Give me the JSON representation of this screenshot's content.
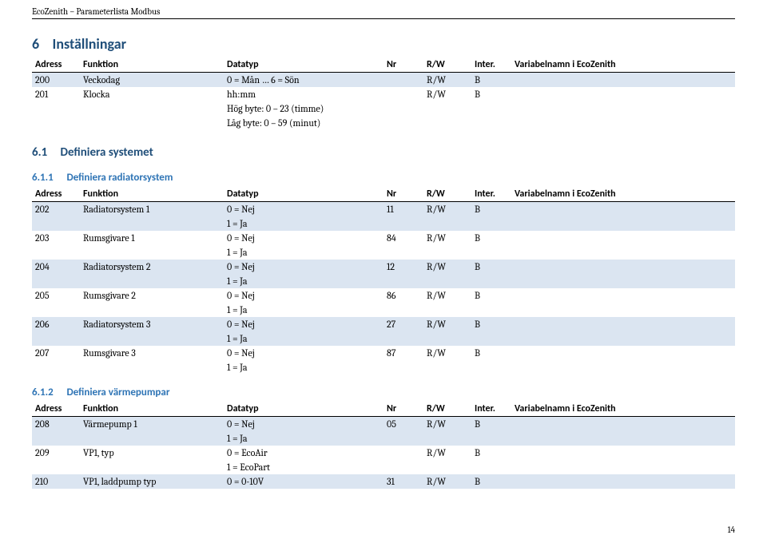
{
  "doc": {
    "header": "EcoZenith – Parameterlista Modbus",
    "page_num": "14"
  },
  "columns": {
    "adress": "Adress",
    "funktion": "Funktion",
    "datatyp": "Datatyp",
    "nr": "Nr",
    "rw": "R/W",
    "inter": "Inter.",
    "varnamn": "Variabelnamn i EcoZenith"
  },
  "sec6": {
    "num": "6",
    "title": "Inställningar",
    "rows": [
      {
        "shade": true,
        "adress": "200",
        "funktion": "Veckodag",
        "datatyp": "0 = Mån … 6 = Sön",
        "nr": "",
        "rw": "R/W",
        "inter": "B",
        "var": ""
      },
      {
        "shade": false,
        "adress": "201",
        "funktion": "Klocka",
        "datatyp": "hh:mm",
        "nr": "",
        "rw": "R/W",
        "inter": "B",
        "var": ""
      },
      {
        "shade": false,
        "adress": "",
        "funktion": "",
        "datatyp": "Hög byte: 0 – 23 (timme)",
        "nr": "",
        "rw": "",
        "inter": "",
        "var": ""
      },
      {
        "shade": false,
        "adress": "",
        "funktion": "",
        "datatyp": "Låg byte: 0 – 59 (minut)",
        "nr": "",
        "rw": "",
        "inter": "",
        "var": ""
      }
    ]
  },
  "sec61": {
    "num": "6.1",
    "title": "Definiera systemet"
  },
  "sec611": {
    "num": "6.1.1",
    "title": "Definiera radiatorsystem",
    "rows": [
      {
        "shade": true,
        "adress": "202",
        "funktion": "Radiatorsystem 1",
        "datatyp": "0 = Nej",
        "nr": "11",
        "rw": "R/W",
        "inter": "B",
        "var": ""
      },
      {
        "shade": true,
        "adress": "",
        "funktion": "",
        "datatyp": "1 = Ja",
        "nr": "",
        "rw": "",
        "inter": "",
        "var": ""
      },
      {
        "shade": false,
        "adress": "203",
        "funktion": "Rumsgivare 1",
        "datatyp": "0 = Nej",
        "nr": "84",
        "rw": "R/W",
        "inter": "B",
        "var": ""
      },
      {
        "shade": false,
        "adress": "",
        "funktion": "",
        "datatyp": "1 = Ja",
        "nr": "",
        "rw": "",
        "inter": "",
        "var": ""
      },
      {
        "shade": true,
        "adress": "204",
        "funktion": "Radiatorsystem 2",
        "datatyp": "0 = Nej",
        "nr": "12",
        "rw": "R/W",
        "inter": "B",
        "var": ""
      },
      {
        "shade": true,
        "adress": "",
        "funktion": "",
        "datatyp": "1 = Ja",
        "nr": "",
        "rw": "",
        "inter": "",
        "var": ""
      },
      {
        "shade": false,
        "adress": "205",
        "funktion": "Rumsgivare 2",
        "datatyp": "0 = Nej",
        "nr": "86",
        "rw": "R/W",
        "inter": "B",
        "var": ""
      },
      {
        "shade": false,
        "adress": "",
        "funktion": "",
        "datatyp": "1 = Ja",
        "nr": "",
        "rw": "",
        "inter": "",
        "var": ""
      },
      {
        "shade": true,
        "adress": "206",
        "funktion": "Radiatorsystem 3",
        "datatyp": "0 = Nej",
        "nr": "27",
        "rw": "R/W",
        "inter": "B",
        "var": ""
      },
      {
        "shade": true,
        "adress": "",
        "funktion": "",
        "datatyp": "1 = Ja",
        "nr": "",
        "rw": "",
        "inter": "",
        "var": ""
      },
      {
        "shade": false,
        "adress": "207",
        "funktion": "Rumsgivare 3",
        "datatyp": "0 = Nej",
        "nr": "87",
        "rw": "R/W",
        "inter": "B",
        "var": ""
      },
      {
        "shade": false,
        "adress": "",
        "funktion": "",
        "datatyp": "1 = Ja",
        "nr": "",
        "rw": "",
        "inter": "",
        "var": ""
      }
    ]
  },
  "sec612": {
    "num": "6.1.2",
    "title": "Definiera värmepumpar",
    "rows": [
      {
        "shade": true,
        "adress": "208",
        "funktion": "Värmepump 1",
        "datatyp": "0 = Nej",
        "nr": "05",
        "rw": "R/W",
        "inter": "B",
        "var": ""
      },
      {
        "shade": true,
        "adress": "",
        "funktion": "",
        "datatyp": "1 = Ja",
        "nr": "",
        "rw": "",
        "inter": "",
        "var": ""
      },
      {
        "shade": false,
        "adress": "209",
        "funktion": "VP1, typ",
        "datatyp": "0 = EcoAir",
        "nr": "",
        "rw": "R/W",
        "inter": "B",
        "var": ""
      },
      {
        "shade": false,
        "adress": "",
        "funktion": "",
        "datatyp": "1 = EcoPart",
        "nr": "",
        "rw": "",
        "inter": "",
        "var": ""
      },
      {
        "shade": true,
        "adress": "210",
        "funktion": "VP1, laddpump typ",
        "datatyp": "0 = 0-10V",
        "nr": "31",
        "rw": "R/W",
        "inter": "B",
        "var": ""
      }
    ]
  }
}
